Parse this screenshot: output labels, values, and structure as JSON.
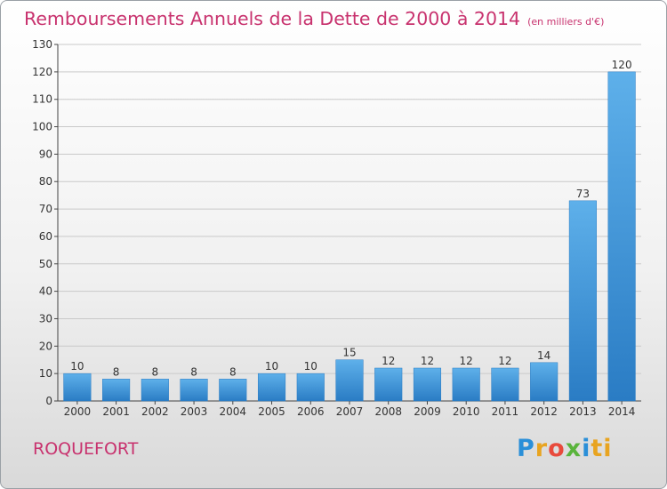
{
  "chart_data": {
    "type": "bar",
    "title": "Remboursements Annuels de la Dette de 2000 à 2014",
    "unit": "(en milliers d'€)",
    "categories": [
      "2000",
      "2001",
      "2002",
      "2003",
      "2004",
      "2005",
      "2006",
      "2007",
      "2008",
      "2009",
      "2010",
      "2011",
      "2012",
      "2013",
      "2014"
    ],
    "values": [
      10,
      8,
      8,
      8,
      8,
      10,
      10,
      15,
      12,
      12,
      12,
      12,
      14,
      73,
      120
    ],
    "data_labels": [
      "10",
      "8",
      "8",
      "8",
      "8",
      "10",
      "10",
      "15",
      "12",
      "12",
      "12",
      "12",
      "14",
      "73",
      "120"
    ],
    "ylim": [
      0,
      130
    ],
    "yticks": [
      0,
      10,
      20,
      30,
      40,
      50,
      60,
      70,
      80,
      90,
      100,
      110,
      120,
      130
    ],
    "grid": true,
    "bar_color": "#3d93d9",
    "title_color": "#c8326e"
  },
  "place_name": "ROQUEFORT",
  "logo_text": "Proxiti"
}
